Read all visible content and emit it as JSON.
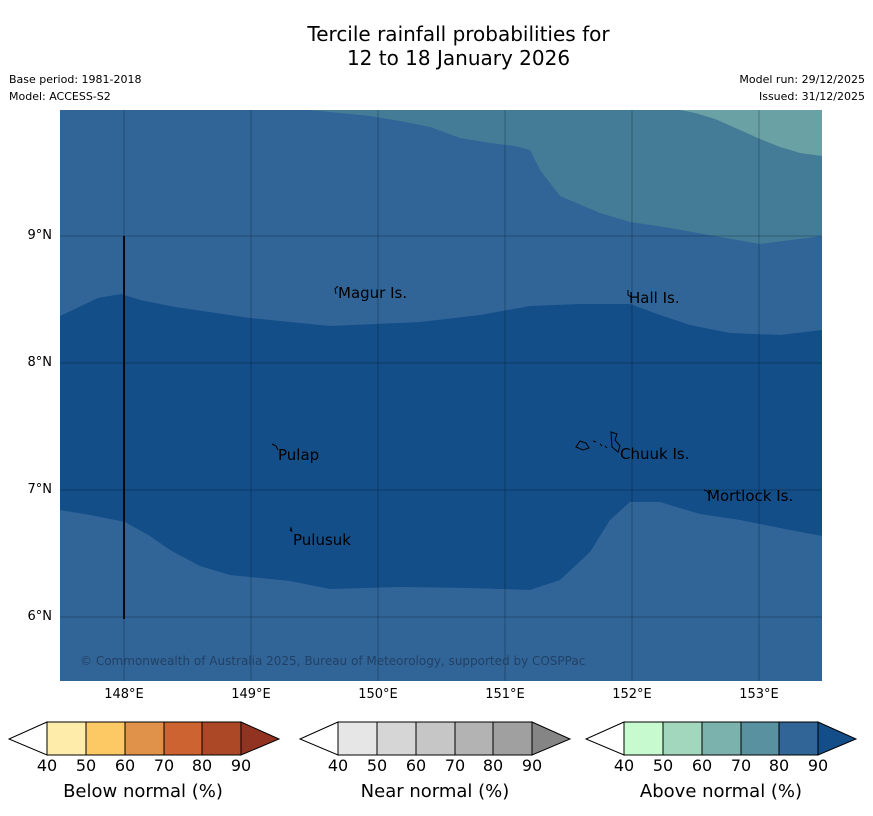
{
  "title": {
    "line1": "Tercile rainfall probabilities for",
    "line2": "12 to 18 January 2026"
  },
  "meta": {
    "base_period": "Base period: 1981-2018",
    "model": "Model: ACCESS-S2",
    "model_run": "Model run: 29/12/2025",
    "issued": "Issued: 31/12/2025"
  },
  "map": {
    "lat_ticks": [
      "9°N",
      "8°N",
      "7°N",
      "6°N"
    ],
    "lon_ticks": [
      "148°E",
      "149°E",
      "150°E",
      "151°E",
      "152°E",
      "153°E"
    ],
    "places": {
      "magur": "Magur Is.",
      "hall": "Hall Is.",
      "pulap": "Pulap",
      "chuuk": "Chuuk Is.",
      "mortlock": "Mortlock Is.",
      "pulusuk": "Pulusuk"
    },
    "copyright": "© Commonwealth of Australia 2025, Bureau of Meteorology, supported by COSPPac",
    "colors": {
      "above_80": "#316598",
      "above_90": "#134e88",
      "above_70": "#447b96",
      "above_60": "#6aa1a4"
    }
  },
  "colorbars": {
    "below": {
      "label": "Below normal (%)",
      "ticks": [
        "40",
        "50",
        "60",
        "70",
        "80",
        "90"
      ],
      "colors": [
        "#ffffff",
        "#feecab",
        "#fdc964",
        "#e0924a",
        "#cc6330",
        "#ad4827",
        "#923321"
      ]
    },
    "near": {
      "label": "Near normal (%)",
      "ticks": [
        "40",
        "50",
        "60",
        "70",
        "80",
        "90"
      ],
      "colors": [
        "#ffffff",
        "#e6e6e6",
        "#d6d6d6",
        "#c6c6c6",
        "#b3b3b3",
        "#a0a0a0",
        "#858585"
      ]
    },
    "above": {
      "label": "Above normal (%)",
      "ticks": [
        "40",
        "50",
        "60",
        "70",
        "80",
        "90"
      ],
      "colors": [
        "#ffffff",
        "#c8fad0",
        "#a2d7be",
        "#7cb2ad",
        "#5a91a0",
        "#316598",
        "#134e88"
      ]
    }
  }
}
